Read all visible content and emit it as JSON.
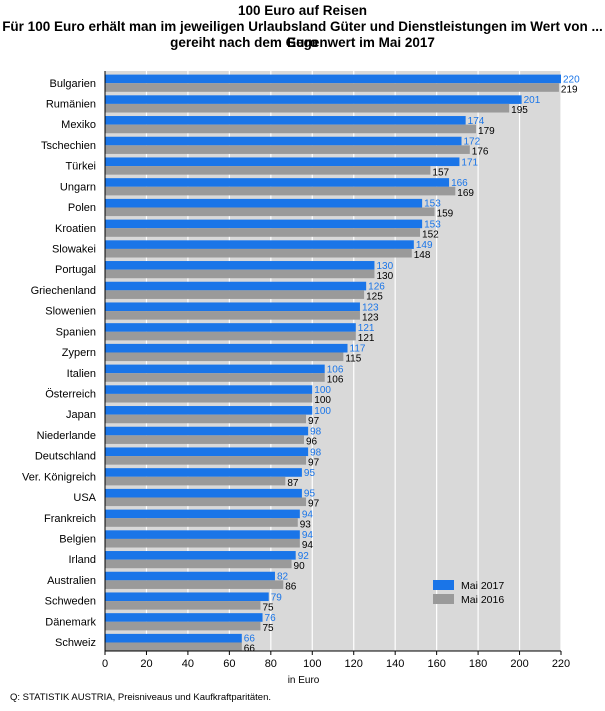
{
  "header": {
    "title": "100 Euro auf Reisen",
    "subtitle_line1": "Für 100 Euro erhält man im jeweiligen Urlaubsland Güter und Dienstleistungen im Wert von ... Euro",
    "subtitle_line2": "gereiht nach dem Gegenwert im Mai 2017"
  },
  "source": "Q: STATISTIK AUSTRIA, Preisniveaus und Kaufkraftparitäten.",
  "colors": {
    "series_2017": "#1a75e8",
    "series_2016": "#9a9a9a",
    "label_2017": "#1a75e8",
    "label_2016": "#000000",
    "plot_background": "#d9d9d9",
    "grid": "#ffffff"
  },
  "chart_data": {
    "type": "bar",
    "orientation": "horizontal",
    "xlabel": "in Euro",
    "xlim": [
      0,
      220
    ],
    "xticks": [
      0,
      20,
      40,
      60,
      80,
      100,
      120,
      140,
      160,
      180,
      200,
      220
    ],
    "grid": true,
    "legend_position": "bottom-right",
    "categories": [
      "Bulgarien",
      "Rumänien",
      "Mexiko",
      "Tschechien",
      "Türkei",
      "Ungarn",
      "Polen",
      "Kroatien",
      "Slowakei",
      "Portugal",
      "Griechenland",
      "Slowenien",
      "Spanien",
      "Zypern",
      "Italien",
      "Österreich",
      "Japan",
      "Niederlande",
      "Deutschland",
      "Ver. Königreich",
      "USA",
      "Frankreich",
      "Belgien",
      "Irland",
      "Australien",
      "Schweden",
      "Dänemark",
      "Schweiz"
    ],
    "series": [
      {
        "name": "Mai 2017",
        "values": [
          220,
          201,
          174,
          172,
          171,
          166,
          153,
          153,
          149,
          130,
          126,
          123,
          121,
          117,
          106,
          100,
          100,
          98,
          98,
          95,
          95,
          94,
          94,
          92,
          82,
          79,
          76,
          66
        ]
      },
      {
        "name": "Mai 2016",
        "values": [
          219,
          195,
          179,
          176,
          157,
          169,
          159,
          152,
          148,
          130,
          125,
          123,
          121,
          115,
          106,
          100,
          97,
          96,
          97,
          87,
          97,
          93,
          94,
          90,
          86,
          75,
          75,
          66
        ]
      }
    ]
  }
}
